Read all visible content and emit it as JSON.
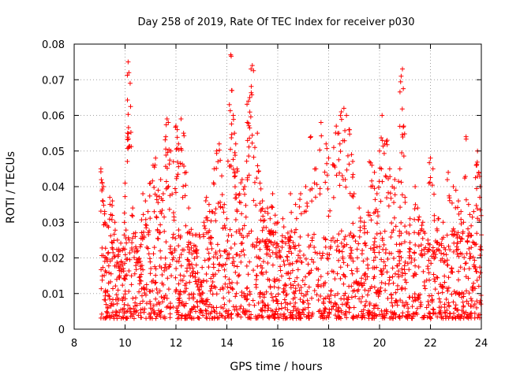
{
  "chart_data": {
    "type": "scatter",
    "title": "Day 258 of 2019, Rate Of TEC Index for receiver p030",
    "xlabel": "GPS time / hours",
    "ylabel": "ROTI / TECUs",
    "xlim": [
      8,
      24
    ],
    "ylim": [
      0,
      0.08
    ],
    "x_ticks": [
      8,
      10,
      12,
      14,
      16,
      18,
      20,
      22,
      24
    ],
    "x_tick_labels": [
      "8",
      "10",
      "12",
      "14",
      "16",
      "18",
      "20",
      "22",
      "24"
    ],
    "y_ticks": [
      0,
      0.01,
      0.02,
      0.03,
      0.04,
      0.05,
      0.06,
      0.07,
      0.08
    ],
    "y_tick_labels": [
      "0",
      "0.01",
      "0.02",
      "0.03",
      "0.04",
      "0.05",
      "0.06",
      "0.07",
      "0.08"
    ],
    "grid": true,
    "marker": "+",
    "color": "#ff0000",
    "series": [
      {
        "name": "ROTI",
        "points": [
          [
            9.05,
            0.045
          ],
          [
            9.1,
            0.041
          ],
          [
            9.15,
            0.04
          ],
          [
            9.2,
            0.033
          ],
          [
            9.3,
            0.029
          ],
          [
            9.4,
            0.037
          ],
          [
            9.5,
            0.036
          ],
          [
            9.6,
            0.03
          ],
          [
            9.7,
            0.025
          ],
          [
            9.8,
            0.022
          ],
          [
            9.9,
            0.018
          ],
          [
            10.0,
            0.041
          ],
          [
            10.1,
            0.055
          ],
          [
            10.12,
            0.075
          ],
          [
            10.15,
            0.072
          ],
          [
            10.2,
            0.069
          ],
          [
            10.3,
            0.034
          ],
          [
            10.4,
            0.026
          ],
          [
            10.5,
            0.022
          ],
          [
            10.6,
            0.019
          ],
          [
            10.7,
            0.038
          ],
          [
            10.8,
            0.036
          ],
          [
            10.9,
            0.033
          ],
          [
            11.0,
            0.041
          ],
          [
            11.1,
            0.046
          ],
          [
            11.2,
            0.048
          ],
          [
            11.3,
            0.039
          ],
          [
            11.4,
            0.042
          ],
          [
            11.5,
            0.038
          ],
          [
            11.6,
            0.054
          ],
          [
            11.65,
            0.059
          ],
          [
            11.7,
            0.058
          ],
          [
            11.8,
            0.05
          ],
          [
            11.9,
            0.047
          ],
          [
            12.0,
            0.057
          ],
          [
            12.05,
            0.056
          ],
          [
            12.1,
            0.052
          ],
          [
            12.2,
            0.059
          ],
          [
            12.3,
            0.055
          ],
          [
            12.4,
            0.044
          ],
          [
            12.5,
            0.034
          ],
          [
            12.6,
            0.028
          ],
          [
            12.7,
            0.022
          ],
          [
            12.8,
            0.018
          ],
          [
            12.9,
            0.014
          ],
          [
            13.0,
            0.012
          ],
          [
            13.1,
            0.03
          ],
          [
            13.2,
            0.037
          ],
          [
            13.3,
            0.035
          ],
          [
            13.4,
            0.033
          ],
          [
            13.5,
            0.045
          ],
          [
            13.6,
            0.05
          ],
          [
            13.7,
            0.052
          ],
          [
            13.8,
            0.043
          ],
          [
            13.9,
            0.035
          ],
          [
            14.0,
            0.031
          ],
          [
            14.1,
            0.063
          ],
          [
            14.15,
            0.077
          ],
          [
            14.2,
            0.067
          ],
          [
            14.25,
            0.06
          ],
          [
            14.3,
            0.055
          ],
          [
            14.35,
            0.052
          ],
          [
            14.4,
            0.045
          ],
          [
            14.5,
            0.038
          ],
          [
            14.6,
            0.042
          ],
          [
            14.7,
            0.04
          ],
          [
            14.8,
            0.058
          ],
          [
            14.85,
            0.064
          ],
          [
            14.9,
            0.065
          ],
          [
            14.95,
            0.073
          ],
          [
            15.0,
            0.074
          ],
          [
            15.1,
            0.051
          ],
          [
            15.2,
            0.055
          ],
          [
            15.3,
            0.041
          ],
          [
            15.4,
            0.036
          ],
          [
            15.5,
            0.033
          ],
          [
            15.6,
            0.034
          ],
          [
            15.7,
            0.031
          ],
          [
            15.8,
            0.038
          ],
          [
            15.9,
            0.032
          ],
          [
            16.0,
            0.03
          ],
          [
            16.2,
            0.031
          ],
          [
            16.4,
            0.027
          ],
          [
            16.5,
            0.038
          ],
          [
            16.7,
            0.035
          ],
          [
            16.9,
            0.038
          ],
          [
            17.1,
            0.04
          ],
          [
            17.3,
            0.054
          ],
          [
            17.5,
            0.045
          ],
          [
            17.7,
            0.058
          ],
          [
            17.9,
            0.052
          ],
          [
            18.0,
            0.048
          ],
          [
            18.2,
            0.051
          ],
          [
            18.3,
            0.057
          ],
          [
            18.4,
            0.055
          ],
          [
            18.5,
            0.061
          ],
          [
            18.6,
            0.062
          ],
          [
            18.7,
            0.06
          ],
          [
            18.8,
            0.056
          ],
          [
            18.9,
            0.049
          ],
          [
            19.0,
            0.038
          ],
          [
            19.2,
            0.034
          ],
          [
            19.4,
            0.03
          ],
          [
            19.6,
            0.047
          ],
          [
            19.7,
            0.046
          ],
          [
            19.8,
            0.044
          ],
          [
            19.9,
            0.038
          ],
          [
            20.0,
            0.05
          ],
          [
            20.1,
            0.06
          ],
          [
            20.2,
            0.052
          ],
          [
            20.3,
            0.053
          ],
          [
            20.4,
            0.045
          ],
          [
            20.5,
            0.04
          ],
          [
            20.6,
            0.042
          ],
          [
            20.8,
            0.045
          ],
          [
            20.85,
            0.071
          ],
          [
            20.9,
            0.073
          ],
          [
            20.95,
            0.057
          ],
          [
            21.0,
            0.037
          ],
          [
            21.2,
            0.031
          ],
          [
            21.4,
            0.04
          ],
          [
            21.5,
            0.034
          ],
          [
            21.7,
            0.03
          ],
          [
            21.9,
            0.025
          ],
          [
            22.0,
            0.048
          ],
          [
            22.1,
            0.045
          ],
          [
            22.3,
            0.031
          ],
          [
            22.5,
            0.03
          ],
          [
            22.7,
            0.044
          ],
          [
            22.9,
            0.04
          ],
          [
            23.0,
            0.039
          ],
          [
            23.1,
            0.036
          ],
          [
            23.2,
            0.033
          ],
          [
            23.3,
            0.03
          ],
          [
            23.4,
            0.054
          ],
          [
            23.5,
            0.035
          ],
          [
            23.6,
            0.029
          ],
          [
            23.7,
            0.033
          ],
          [
            23.8,
            0.046
          ],
          [
            23.85,
            0.05
          ],
          [
            23.9,
            0.044
          ],
          [
            23.95,
            0.04
          ]
        ],
        "dense_band": {
          "x_range": [
            9.05,
            24.0
          ],
          "typical_min": 0.003,
          "typical_max": 0.028,
          "note": "thousands of points densely filling roughly 0.003 to 0.025 TECU/s across the whole interval"
        }
      }
    ]
  }
}
